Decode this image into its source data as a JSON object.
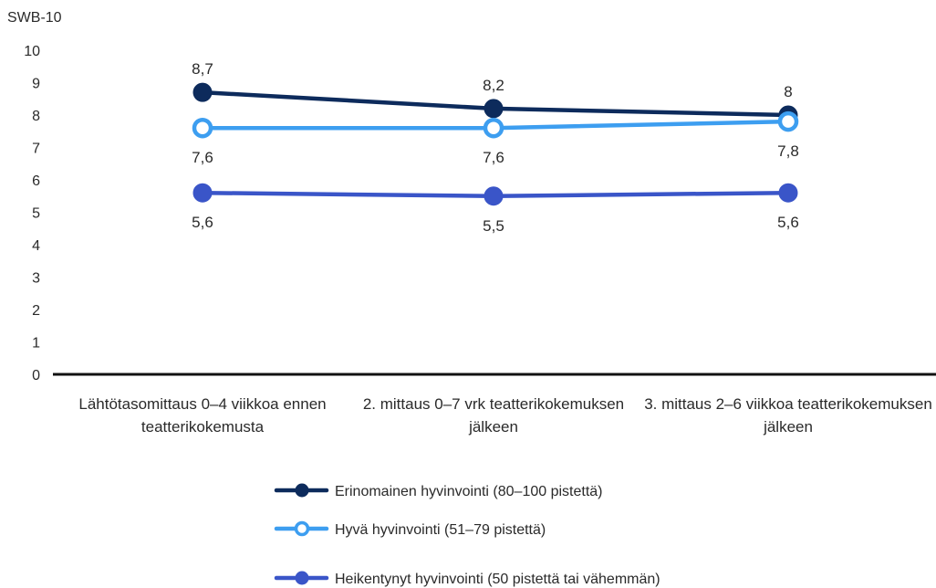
{
  "chart_data": {
    "type": "line",
    "ylabel": "SWB-10",
    "ylim": [
      0,
      10
    ],
    "yticks": [
      0,
      1,
      2,
      3,
      4,
      5,
      6,
      7,
      8,
      9,
      10
    ],
    "categories": [
      [
        "Lähtötasomittaus 0–4 viikkoa ennen",
        "teatterikokemusta"
      ],
      [
        "2. mittaus 0–7 vrk teatterikokemuksen",
        "jälkeen"
      ],
      [
        "3. mittaus 2–6 viikkoa teatterikokemuksen",
        "jälkeen"
      ]
    ],
    "series": [
      {
        "name": "Erinomainen hyvinvointi (80–100 pistettä)",
        "values": [
          8.7,
          8.2,
          8.0
        ],
        "labels": [
          "8,7",
          "8,2",
          "8"
        ],
        "label_position": "above",
        "color": "#0d2b5c",
        "marker": "filled"
      },
      {
        "name": "Hyvä hyvinvointi (51–79 pistettä)",
        "values": [
          7.6,
          7.6,
          7.8
        ],
        "labels": [
          "7,6",
          "7,6",
          "7,8"
        ],
        "label_position": "below",
        "color": "#3d9ef0",
        "marker": "hollow"
      },
      {
        "name": "Heikentynyt hyvinvointi (50 pistettä tai vähemmän)",
        "values": [
          5.6,
          5.5,
          5.6
        ],
        "labels": [
          "5,6",
          "5,5",
          "5,6"
        ],
        "label_position": "below",
        "color": "#3a55c8",
        "marker": "filled"
      }
    ],
    "legend_position": "bottom-center",
    "grid": false
  }
}
